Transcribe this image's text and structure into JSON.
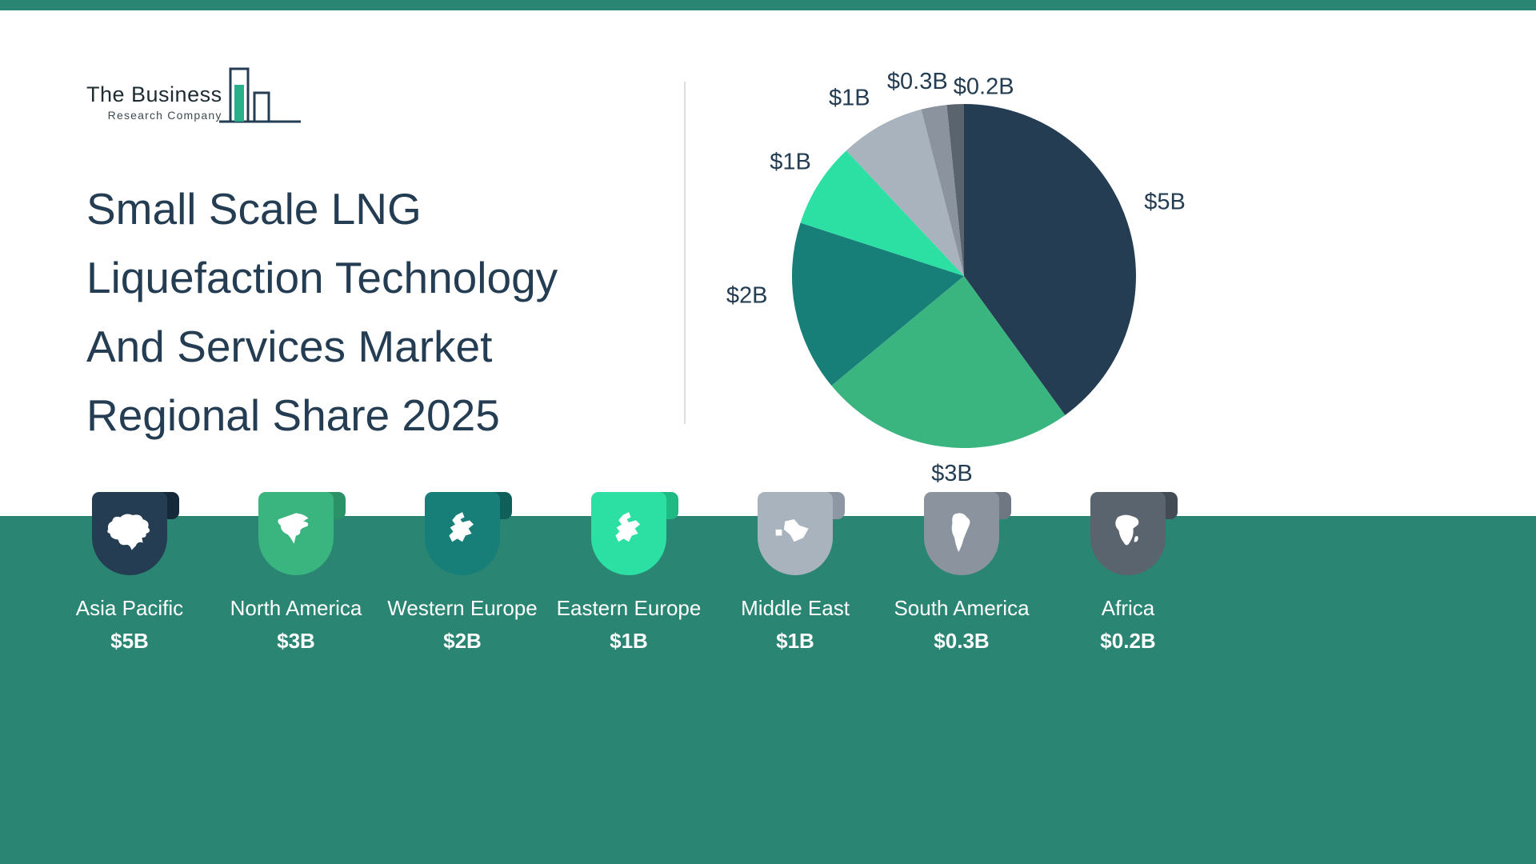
{
  "header": {
    "logo_line1": "The Business",
    "logo_line2": "Research Company"
  },
  "title": {
    "lines": [
      "Small Scale LNG",
      "Liquefaction Technology",
      "And Services Market",
      "Regional Share 2025"
    ]
  },
  "chart_data": {
    "type": "pie",
    "title": "Small Scale LNG Liquefaction Technology And Services Market Regional Share 2025",
    "unit": "USD billions",
    "start_angle_deg": 0,
    "direction": "clockwise",
    "slices": [
      {
        "label": "Asia Pacific",
        "value": 5,
        "value_display": "$5B",
        "color": "#243D52"
      },
      {
        "label": "North America",
        "value": 3,
        "value_display": "$3B",
        "color": "#3BB57F"
      },
      {
        "label": "Western Europe",
        "value": 2,
        "value_display": "$2B",
        "color": "#177E78"
      },
      {
        "label": "Eastern Europe",
        "value": 1,
        "value_display": "$1B",
        "color": "#2BE0A2"
      },
      {
        "label": "Middle East",
        "value": 1,
        "value_display": "$1B",
        "color": "#A9B3BE"
      },
      {
        "label": "South America",
        "value": 0.3,
        "value_display": "$0.3B",
        "color": "#8B949E"
      },
      {
        "label": "Africa",
        "value": 0.2,
        "value_display": "$0.2B",
        "color": "#5A646E"
      }
    ]
  },
  "legend": {
    "items": [
      {
        "label": "Asia Pacific",
        "value_display": "$5B",
        "color": "#243D52",
        "fold_color": "#16293A",
        "icon": "asia-pacific-map-icon"
      },
      {
        "label": "North America",
        "value_display": "$3B",
        "color": "#3BB57F",
        "fold_color": "#2B9166",
        "icon": "north-america-map-icon"
      },
      {
        "label": "Western Europe",
        "value_display": "$2B",
        "color": "#177E78",
        "fold_color": "#0F5F5A",
        "icon": "western-europe-map-icon"
      },
      {
        "label": "Eastern Europe",
        "value_display": "$1B",
        "color": "#2BE0A2",
        "fold_color": "#1FB983",
        "icon": "eastern-europe-map-icon"
      },
      {
        "label": "Middle East",
        "value_display": "$1B",
        "color": "#A9B3BE",
        "fold_color": "#8C97A3",
        "icon": "middle-east-map-icon"
      },
      {
        "label": "South America",
        "value_display": "$0.3B",
        "color": "#8B949E",
        "fold_color": "#6F7882",
        "icon": "south-america-map-icon"
      },
      {
        "label": "Africa",
        "value_display": "$0.2B",
        "color": "#5A646E",
        "fold_color": "#434C55",
        "icon": "africa-map-icon"
      }
    ]
  },
  "colors": {
    "accent_band": "#2A8572",
    "title_text": "#243D52",
    "pie_label_text": "#243D52"
  }
}
